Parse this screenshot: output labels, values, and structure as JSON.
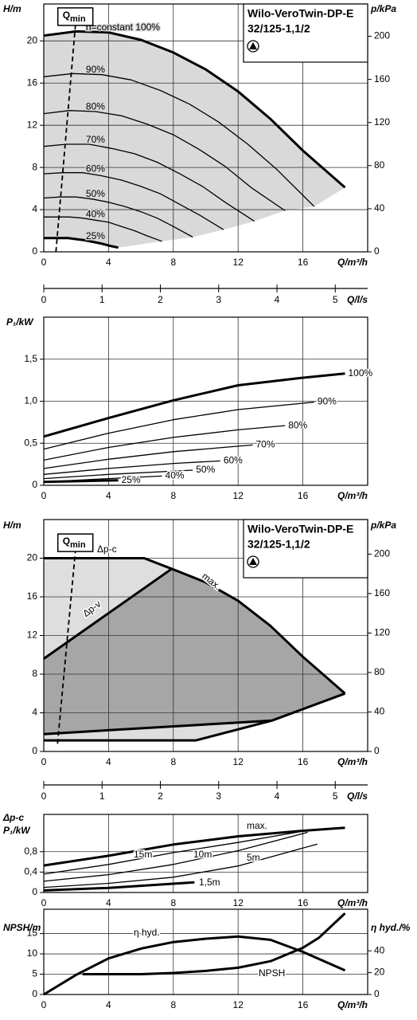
{
  "chart_data": [
    {
      "type": "line",
      "title": "Wilo-VeroTwin-DP-E",
      "subtitle": "32/125-1,1/2",
      "ylabel": "H/m",
      "y2label": "p/kPa",
      "xlabel": "Q/m³/h",
      "x2label": "Q/l/s",
      "xlim": [
        0,
        20
      ],
      "xticks": [
        0,
        4,
        8,
        12,
        16
      ],
      "x2lim": [
        0,
        5.556
      ],
      "x2ticks": [
        0,
        1,
        2,
        3,
        4,
        5
      ],
      "ylim": [
        0,
        23.5
      ],
      "yticks": [
        0,
        4,
        8,
        12,
        16,
        20
      ],
      "y2lim": [
        0,
        230
      ],
      "y2ticks": [
        0,
        40,
        80,
        120,
        160,
        200
      ],
      "grid": true,
      "color": "#000000",
      "fill_color": "#d9d9d9",
      "qmin": {
        "label": "Q",
        "label_sub": "min",
        "x": [
          0.75,
          2.0
        ],
        "y": [
          0,
          22.3
        ]
      },
      "series": [
        {
          "name": "n=constant 100%",
          "linewidth": 3,
          "x": [
            0,
            2,
            4,
            6,
            8,
            10,
            12,
            14,
            16,
            18.6
          ],
          "values": [
            20.5,
            20.9,
            20.8,
            20.1,
            18.9,
            17.3,
            15.2,
            12.6,
            9.6,
            6.1
          ]
        },
        {
          "name": "90%",
          "linewidth": 1.3,
          "x": [
            0,
            1.8,
            3.6,
            5.4,
            7.2,
            9,
            10.8,
            12.6,
            14.4,
            16.7
          ],
          "values": [
            16.6,
            16.9,
            16.8,
            16.3,
            15.3,
            14.0,
            12.3,
            10.2,
            7.8,
            4.3
          ]
        },
        {
          "name": "80%",
          "linewidth": 1.3,
          "x": [
            0,
            1.6,
            3.2,
            4.8,
            6.4,
            8,
            9.6,
            11.2,
            12.8,
            14.9
          ],
          "values": [
            13.1,
            13.4,
            13.3,
            12.9,
            12.1,
            11.1,
            9.7,
            8.1,
            6.1,
            3.9
          ]
        },
        {
          "name": "70%",
          "linewidth": 1.3,
          "x": [
            0,
            1.4,
            2.8,
            4.2,
            5.6,
            7,
            8.4,
            9.8,
            11.2,
            13
          ],
          "values": [
            10.0,
            10.2,
            10.2,
            9.8,
            9.3,
            8.5,
            7.4,
            6.2,
            4.7,
            2.9
          ]
        },
        {
          "name": "60%",
          "linewidth": 1.3,
          "x": [
            0,
            1.2,
            2.4,
            3.6,
            4.8,
            6,
            7.2,
            8.4,
            9.6,
            11.1
          ],
          "values": [
            7.4,
            7.5,
            7.5,
            7.2,
            6.8,
            6.2,
            5.5,
            4.5,
            3.5,
            2.1
          ]
        },
        {
          "name": "50%",
          "linewidth": 1.3,
          "x": [
            0,
            1,
            2,
            3,
            4,
            5,
            6,
            7,
            8,
            9.2
          ],
          "values": [
            5.1,
            5.2,
            5.2,
            5.0,
            4.7,
            4.3,
            3.8,
            3.2,
            2.4,
            1.4
          ]
        },
        {
          "name": "40%",
          "linewidth": 1.3,
          "x": [
            0,
            0.8,
            1.6,
            2.4,
            3.2,
            4,
            4.8,
            5.6,
            6.4,
            7.3
          ],
          "values": [
            3.3,
            3.3,
            3.3,
            3.2,
            3.0,
            2.8,
            2.4,
            2.0,
            1.5,
            1.0
          ]
        },
        {
          "name": "25%",
          "linewidth": 3,
          "x": [
            0,
            0.5,
            1,
            1.5,
            2,
            2.5,
            3,
            3.5,
            4,
            4.6
          ],
          "values": [
            1.3,
            1.3,
            1.3,
            1.3,
            1.2,
            1.1,
            0.95,
            0.8,
            0.6,
            0.4
          ]
        }
      ]
    },
    {
      "type": "line",
      "ylabel": "P₁/kW",
      "xlabel": "Q/m³/h",
      "xlim": [
        0,
        20
      ],
      "xticks": [
        0,
        4,
        8,
        12,
        16
      ],
      "ylim": [
        0,
        2
      ],
      "yticks": [
        0,
        {
          "value": 0.5,
          "label": "0,5"
        },
        {
          "value": 1.0,
          "label": "1,0"
        },
        {
          "value": 1.5,
          "label": "1,5"
        }
      ],
      "grid": true,
      "color": "#000000",
      "series": [
        {
          "name": "100%",
          "linewidth": 3,
          "x": [
            0,
            4,
            8,
            12,
            16,
            18.6
          ],
          "values": [
            0.58,
            0.8,
            1.01,
            1.19,
            1.28,
            1.33
          ]
        },
        {
          "name": "90%",
          "linewidth": 1.3,
          "x": [
            0,
            4,
            8,
            12,
            16.7
          ],
          "values": [
            0.43,
            0.62,
            0.78,
            0.9,
            0.99
          ]
        },
        {
          "name": "80%",
          "linewidth": 1.3,
          "x": [
            0,
            4,
            8,
            12,
            14.9
          ],
          "values": [
            0.3,
            0.45,
            0.57,
            0.66,
            0.71
          ]
        },
        {
          "name": "70%",
          "linewidth": 1.3,
          "x": [
            0,
            4,
            8,
            12.9
          ],
          "values": [
            0.2,
            0.31,
            0.4,
            0.48
          ]
        },
        {
          "name": "60%",
          "linewidth": 1.3,
          "x": [
            0,
            4,
            8,
            10.9
          ],
          "values": [
            0.13,
            0.2,
            0.26,
            0.29
          ]
        },
        {
          "name": "50%",
          "linewidth": 1.3,
          "x": [
            0,
            4,
            9.2
          ],
          "values": [
            0.08,
            0.13,
            0.18
          ]
        },
        {
          "name": "40%",
          "linewidth": 1.3,
          "x": [
            0,
            4,
            7.3
          ],
          "values": [
            0.04,
            0.08,
            0.11
          ]
        },
        {
          "name": "25%",
          "linewidth": 3,
          "x": [
            0,
            4.6
          ],
          "values": [
            0.04,
            0.06
          ]
        }
      ]
    },
    {
      "type": "area",
      "title": "Wilo-VeroTwin-DP-E",
      "subtitle": "32/125-1,1/2",
      "ylabel": "H/m",
      "y2label": "p/kPa",
      "xlabel": "Q/m³/h",
      "x2label": "Q/l/s",
      "xlim": [
        0,
        20
      ],
      "xticks": [
        0,
        4,
        8,
        12,
        16
      ],
      "x2lim": [
        0,
        5.556
      ],
      "x2ticks": [
        0,
        1,
        2,
        3,
        4,
        5
      ],
      "ylim": [
        0,
        24
      ],
      "yticks": [
        0,
        4,
        8,
        12,
        16,
        20
      ],
      "y2lim": [
        0,
        235
      ],
      "y2ticks": [
        0,
        40,
        80,
        120,
        160,
        200
      ],
      "grid": true,
      "color": "#000000",
      "region_colors": [
        "#dedede",
        "#a6a6a6"
      ],
      "qmin": {
        "label": "Q",
        "label_sub": "min",
        "x": [
          0.85,
          2.0
        ],
        "y": [
          0.8,
          21.6
        ]
      },
      "series": [
        {
          "name": "Δp-c",
          "linewidth": 3,
          "x": [
            0,
            6.2,
            7.9
          ],
          "values": [
            20,
            20,
            18.9
          ]
        },
        {
          "name": "max.",
          "linewidth": 3,
          "x": [
            7.9,
            10,
            12,
            14,
            16,
            18.6
          ],
          "values": [
            18.9,
            17.5,
            15.6,
            13,
            9.8,
            6.0
          ]
        },
        {
          "name": "Δp-v",
          "linewidth": 3,
          "x": [
            0,
            7.9
          ],
          "values": [
            9.6,
            18.9
          ]
        },
        {
          "name": null,
          "linewidth": 3,
          "x": [
            0,
            9.4,
            14.1,
            18.6
          ],
          "values": [
            1.15,
            1.15,
            3.2,
            6.0
          ]
        },
        {
          "name": null,
          "linewidth": 3,
          "x": [
            0,
            14.1
          ],
          "values": [
            1.8,
            3.2
          ]
        }
      ]
    },
    {
      "type": "line",
      "title": "Δp-c",
      "ylabel": "P₁/kW",
      "xlabel": "Q/m³/h",
      "xlim": [
        0,
        20
      ],
      "xticks": [
        0,
        4,
        8,
        12,
        16
      ],
      "ylim": [
        0,
        1.53
      ],
      "yticks": [
        0,
        {
          "value": 0.4,
          "label": "0,4"
        },
        {
          "value": 0.8,
          "label": "0,8"
        }
      ],
      "grid": true,
      "color": "#000000",
      "series": [
        {
          "name": "max.",
          "linewidth": 3,
          "x": [
            0,
            4,
            8,
            12,
            16,
            18.6
          ],
          "values": [
            0.53,
            0.72,
            0.94,
            1.1,
            1.21,
            1.27
          ]
        },
        {
          "name": "15m",
          "linewidth": 1.3,
          "x": [
            0,
            4,
            8,
            12,
            16
          ],
          "values": [
            0.36,
            0.55,
            0.78,
            0.98,
            1.2
          ]
        },
        {
          "name": "10m",
          "linewidth": 1.3,
          "x": [
            0,
            4,
            8,
            12,
            16.3
          ],
          "values": [
            0.22,
            0.35,
            0.55,
            0.82,
            1.18
          ]
        },
        {
          "name": "5m",
          "linewidth": 1.3,
          "x": [
            0,
            4,
            8,
            12,
            16.9
          ],
          "values": [
            0.1,
            0.18,
            0.3,
            0.52,
            0.95
          ]
        },
        {
          "name": "1,5m",
          "linewidth": 3,
          "x": [
            0,
            4,
            9.3
          ],
          "values": [
            0.04,
            0.09,
            0.2
          ]
        }
      ]
    },
    {
      "type": "line",
      "ylabel": "NPSH/m",
      "y2label": "η hyd./%",
      "xlabel": "Q/m³/h",
      "xlim": [
        0,
        20
      ],
      "xticks": [
        0,
        4,
        8,
        12,
        16
      ],
      "ylim": [
        0,
        21
      ],
      "yticks": [
        0,
        5,
        10,
        15
      ],
      "y2lim": [
        0,
        78
      ],
      "y2ticks": [
        0,
        20,
        40
      ],
      "grid": true,
      "color": "#000000",
      "series": [
        {
          "name": "η hyd.",
          "axis": "y2",
          "linewidth": 3,
          "x": [
            0,
            2,
            4,
            6,
            8,
            10,
            12,
            14,
            16,
            18.6
          ],
          "values": [
            0,
            18,
            33,
            42,
            48,
            51,
            53,
            50,
            39,
            22
          ]
        },
        {
          "name": "NPSH",
          "linewidth": 3,
          "x": [
            2.4,
            4,
            6,
            8,
            10,
            12,
            14,
            16,
            17,
            18.6
          ],
          "values": [
            5,
            5,
            5,
            5.3,
            5.8,
            6.6,
            8.2,
            11.5,
            14,
            20
          ]
        }
      ]
    }
  ]
}
